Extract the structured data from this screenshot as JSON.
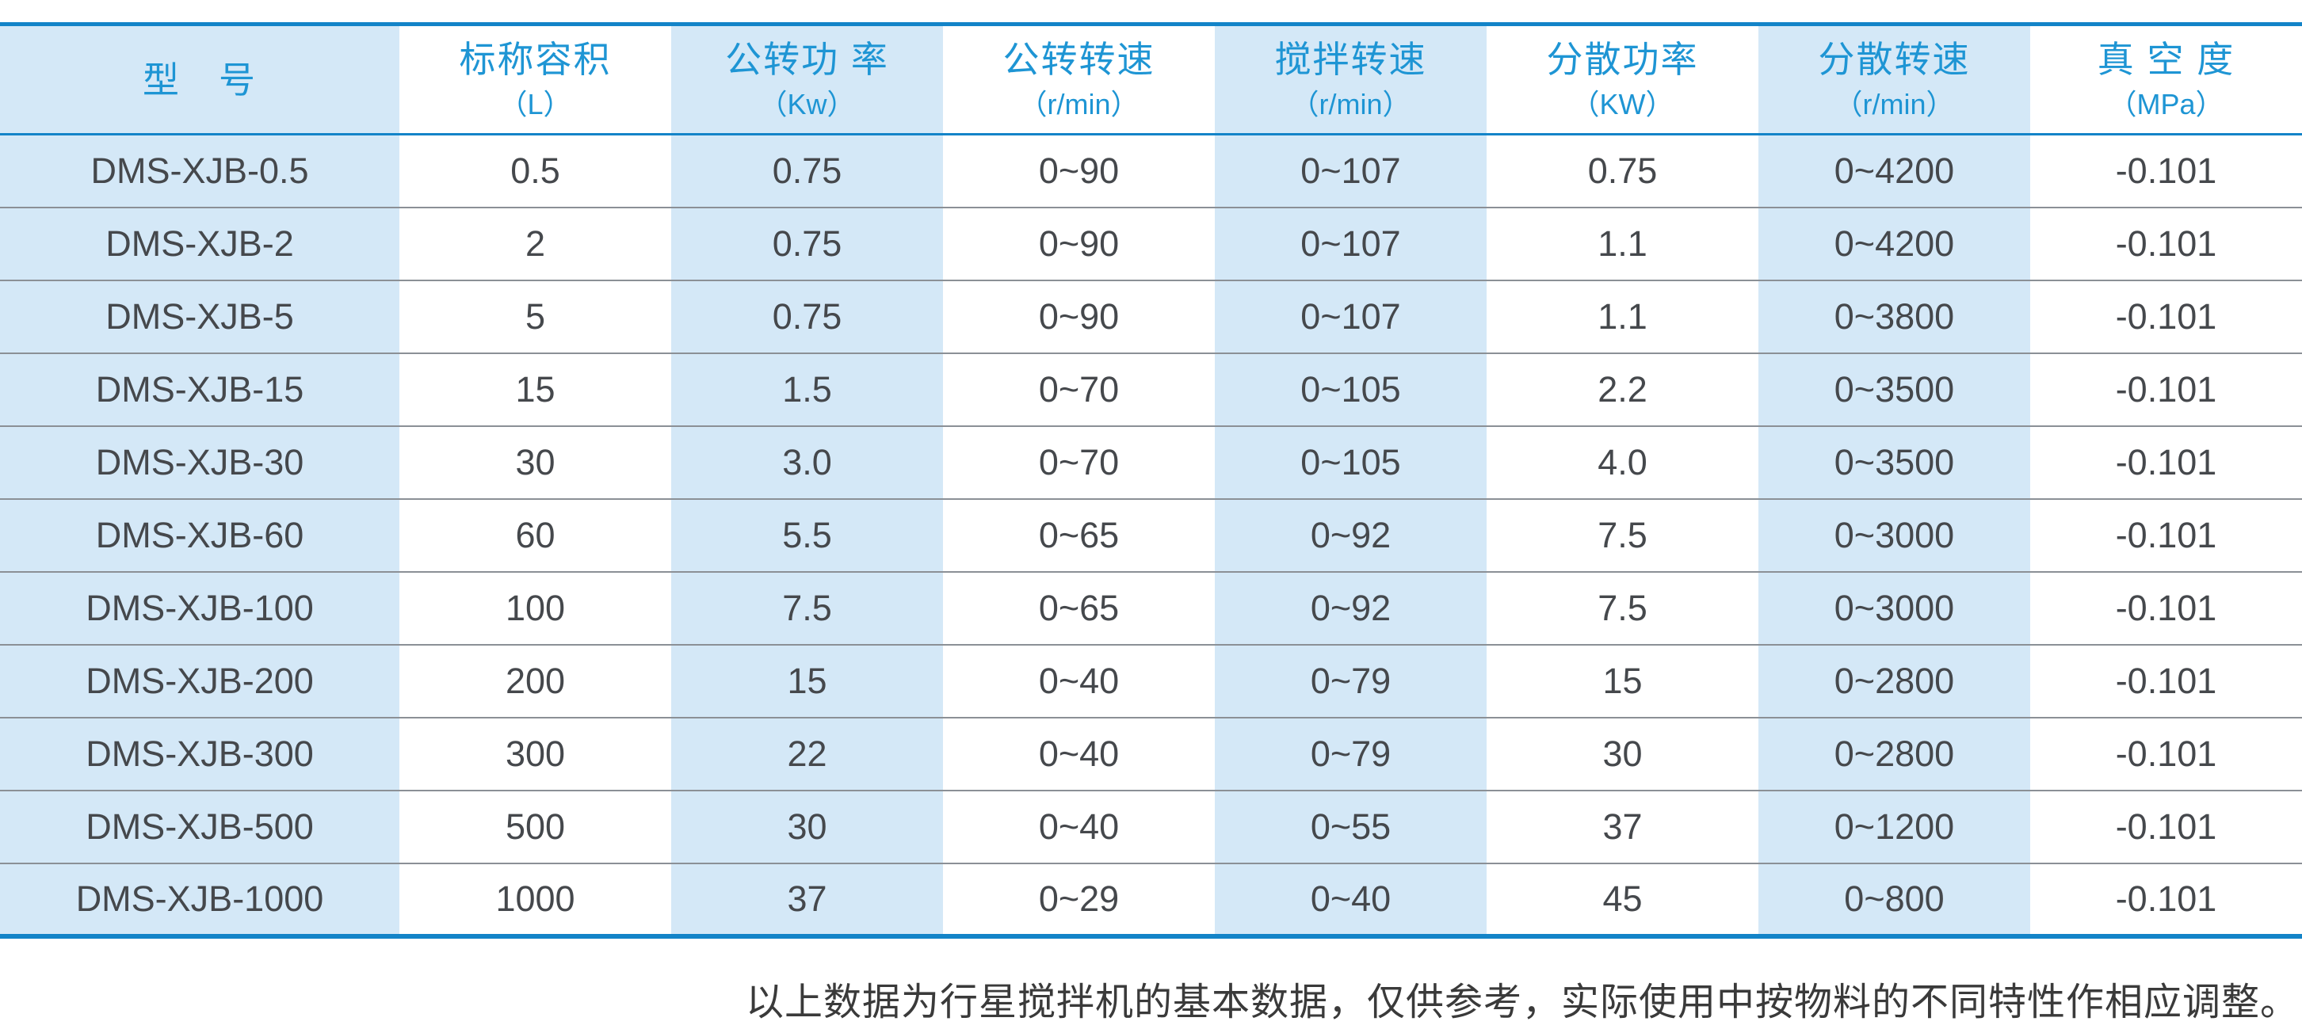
{
  "colors": {
    "accent_blue_text": "#1e95d4",
    "border_blue": "#1384c8",
    "stripe_light_blue": "#d4e8f7",
    "row_separator_gray": "#8b9096",
    "cell_text_gray": "#45484c",
    "footer_text": "#3a3a3a"
  },
  "table": {
    "columns": [
      {
        "label": "型　号",
        "unit": ""
      },
      {
        "label": "标称容积",
        "unit": "（L）"
      },
      {
        "label": "公转功 率",
        "unit": "（Kw）"
      },
      {
        "label": "公转转速",
        "unit": "（r/min）"
      },
      {
        "label": "搅拌转速",
        "unit": "（r/min）"
      },
      {
        "label": "分散功率",
        "unit": "（KW）"
      },
      {
        "label": "分散转速",
        "unit": "（r/min）"
      },
      {
        "label": "真 空 度",
        "unit": "（MPa）"
      }
    ],
    "rows": [
      [
        "DMS-XJB-0.5",
        "0.5",
        "0.75",
        "0~90",
        "0~107",
        "0.75",
        "0~4200",
        "-0.101"
      ],
      [
        "DMS-XJB-2",
        "2",
        "0.75",
        "0~90",
        "0~107",
        "1.1",
        "0~4200",
        "-0.101"
      ],
      [
        "DMS-XJB-5",
        "5",
        "0.75",
        "0~90",
        "0~107",
        "1.1",
        "0~3800",
        "-0.101"
      ],
      [
        "DMS-XJB-15",
        "15",
        "1.5",
        "0~70",
        "0~105",
        "2.2",
        "0~3500",
        "-0.101"
      ],
      [
        "DMS-XJB-30",
        "30",
        "3.0",
        "0~70",
        "0~105",
        "4.0",
        "0~3500",
        "-0.101"
      ],
      [
        "DMS-XJB-60",
        "60",
        "5.5",
        "0~65",
        "0~92",
        "7.5",
        "0~3000",
        "-0.101"
      ],
      [
        "DMS-XJB-100",
        "100",
        "7.5",
        "0~65",
        "0~92",
        "7.5",
        "0~3000",
        "-0.101"
      ],
      [
        "DMS-XJB-200",
        "200",
        "15",
        "0~40",
        "0~79",
        "15",
        "0~2800",
        "-0.101"
      ],
      [
        "DMS-XJB-300",
        "300",
        "22",
        "0~40",
        "0~79",
        "30",
        "0~2800",
        "-0.101"
      ],
      [
        "DMS-XJB-500",
        "500",
        "30",
        "0~40",
        "0~55",
        "37",
        "0~1200",
        "-0.101"
      ],
      [
        "DMS-XJB-1000",
        "1000",
        "37",
        "0~29",
        "0~40",
        "45",
        "0~800",
        "-0.101"
      ]
    ]
  },
  "footer": {
    "note": "以上数据为行星搅拌机的基本数据，仅供参考，实际使用中按物料的不同特性作相应调整。"
  }
}
